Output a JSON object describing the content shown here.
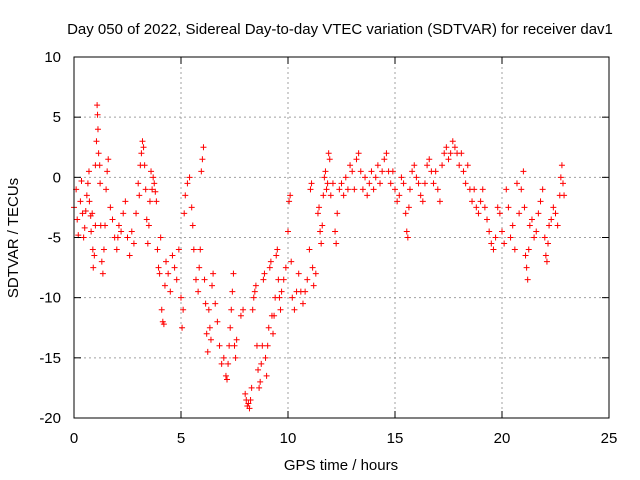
{
  "chart_data": {
    "type": "scatter",
    "title": "Day 050 of 2022, Sidereal Day-to-day VTEC variation (SDTVAR) for receiver dav1",
    "xlabel": "GPS time / hours",
    "ylabel": "SDTVAR / TECUs",
    "xlim": [
      0,
      25
    ],
    "ylim": [
      -20,
      10
    ],
    "xticks": [
      0,
      5,
      10,
      15,
      20,
      25
    ],
    "yticks": [
      -20,
      -15,
      -10,
      -5,
      0,
      5,
      10
    ],
    "grid": true,
    "marker": "+",
    "color": "#ff0000",
    "series": [
      {
        "name": "SDTVAR",
        "points": [
          [
            0.0,
            -2.5
          ],
          [
            0.1,
            -1.0
          ],
          [
            0.15,
            -3.5
          ],
          [
            0.2,
            -4.8
          ],
          [
            0.3,
            -2.0
          ],
          [
            0.35,
            -0.3
          ],
          [
            0.4,
            -3.0
          ],
          [
            0.45,
            -5.0
          ],
          [
            0.5,
            -4.2
          ],
          [
            0.55,
            -2.8
          ],
          [
            0.6,
            -1.5
          ],
          [
            0.65,
            -0.5
          ],
          [
            0.7,
            0.5
          ],
          [
            0.72,
            -2.0
          ],
          [
            0.78,
            -3.2
          ],
          [
            0.8,
            -4.5
          ],
          [
            0.85,
            -3.0
          ],
          [
            0.88,
            -6.0
          ],
          [
            0.9,
            -7.5
          ],
          [
            0.95,
            -6.5
          ],
          [
            1.0,
            -4.0
          ],
          [
            1.0,
            1.0
          ],
          [
            1.05,
            3.0
          ],
          [
            1.08,
            6.0
          ],
          [
            1.1,
            5.2
          ],
          [
            1.12,
            4.0
          ],
          [
            1.15,
            2.0
          ],
          [
            1.2,
            1.0
          ],
          [
            1.22,
            -0.5
          ],
          [
            1.25,
            -4.0
          ],
          [
            1.3,
            -7.0
          ],
          [
            1.35,
            -8.0
          ],
          [
            1.4,
            -6.0
          ],
          [
            1.45,
            -4.0
          ],
          [
            1.5,
            -1.0
          ],
          [
            1.55,
            0.5
          ],
          [
            1.6,
            1.5
          ],
          [
            1.7,
            -2.5
          ],
          [
            1.8,
            -3.5
          ],
          [
            1.9,
            -5.0
          ],
          [
            2.0,
            -6.0
          ],
          [
            2.05,
            -5.0
          ],
          [
            2.1,
            -4.0
          ],
          [
            2.2,
            -4.5
          ],
          [
            2.3,
            -3.0
          ],
          [
            2.4,
            -2.0
          ],
          [
            2.5,
            -5.0
          ],
          [
            2.6,
            -6.5
          ],
          [
            2.7,
            -4.5
          ],
          [
            2.8,
            -5.5
          ],
          [
            2.9,
            -3.0
          ],
          [
            3.0,
            -0.5
          ],
          [
            3.05,
            -1.5
          ],
          [
            3.1,
            1.0
          ],
          [
            3.15,
            2.0
          ],
          [
            3.2,
            3.0
          ],
          [
            3.25,
            2.5
          ],
          [
            3.3,
            1.0
          ],
          [
            3.35,
            -1.0
          ],
          [
            3.4,
            -3.5
          ],
          [
            3.45,
            -5.5
          ],
          [
            3.5,
            -4.0
          ],
          [
            3.55,
            -2.0
          ],
          [
            3.6,
            0.5
          ],
          [
            3.65,
            -1.0
          ],
          [
            3.7,
            0.0
          ],
          [
            3.75,
            -0.5
          ],
          [
            3.8,
            -1.2
          ],
          [
            3.85,
            -2.0
          ],
          [
            3.9,
            -6.0
          ],
          [
            3.95,
            -7.5
          ],
          [
            4.0,
            -8.0
          ],
          [
            4.05,
            -5.0
          ],
          [
            4.1,
            -11.0
          ],
          [
            4.15,
            -12.0
          ],
          [
            4.2,
            -12.2
          ],
          [
            4.25,
            -9.0
          ],
          [
            4.3,
            -7.0
          ],
          [
            4.4,
            -8.0
          ],
          [
            4.5,
            -9.5
          ],
          [
            4.6,
            -6.5
          ],
          [
            4.7,
            -7.5
          ],
          [
            4.8,
            -8.5
          ],
          [
            4.9,
            -6.0
          ],
          [
            5.0,
            -10.0
          ],
          [
            5.05,
            -12.5
          ],
          [
            5.1,
            -11.0
          ],
          [
            5.15,
            -3.0
          ],
          [
            5.2,
            -1.5
          ],
          [
            5.3,
            -0.5
          ],
          [
            5.4,
            0.0
          ],
          [
            5.5,
            -2.5
          ],
          [
            5.55,
            -4.0
          ],
          [
            5.6,
            -6.0
          ],
          [
            5.7,
            -8.5
          ],
          [
            5.8,
            -9.5
          ],
          [
            5.85,
            -7.5
          ],
          [
            5.9,
            -6.0
          ],
          [
            5.95,
            0.5
          ],
          [
            6.0,
            1.5
          ],
          [
            6.05,
            2.5
          ],
          [
            6.1,
            -8.5
          ],
          [
            6.15,
            -10.5
          ],
          [
            6.2,
            -13.0
          ],
          [
            6.25,
            -14.5
          ],
          [
            6.3,
            -11.0
          ],
          [
            6.35,
            -12.5
          ],
          [
            6.4,
            -13.5
          ],
          [
            6.45,
            -9.0
          ],
          [
            6.5,
            -8.0
          ],
          [
            6.6,
            -10.5
          ],
          [
            6.7,
            -12.0
          ],
          [
            6.8,
            -14.0
          ],
          [
            6.9,
            -15.5
          ],
          [
            7.0,
            -15.0
          ],
          [
            7.1,
            -16.5
          ],
          [
            7.15,
            -16.8
          ],
          [
            7.2,
            -15.5
          ],
          [
            7.25,
            -14.0
          ],
          [
            7.3,
            -12.5
          ],
          [
            7.35,
            -11.0
          ],
          [
            7.4,
            -9.5
          ],
          [
            7.45,
            -8.0
          ],
          [
            7.5,
            -14.0
          ],
          [
            7.55,
            -15.0
          ],
          [
            7.6,
            -13.5
          ],
          [
            7.8,
            -11.5
          ],
          [
            7.9,
            -11.0
          ],
          [
            8.0,
            -18.0
          ],
          [
            8.05,
            -18.5
          ],
          [
            8.1,
            -19.0
          ],
          [
            8.15,
            -18.8
          ],
          [
            8.2,
            -19.2
          ],
          [
            8.25,
            -18.5
          ],
          [
            8.3,
            -17.5
          ],
          [
            8.35,
            -11.0
          ],
          [
            8.4,
            -10.0
          ],
          [
            8.45,
            -9.5
          ],
          [
            8.5,
            -9.0
          ],
          [
            8.55,
            -14.0
          ],
          [
            8.6,
            -16.0
          ],
          [
            8.65,
            -17.5
          ],
          [
            8.7,
            -17.0
          ],
          [
            8.75,
            -15.5
          ],
          [
            8.8,
            -14.0
          ],
          [
            8.85,
            -8.5
          ],
          [
            8.9,
            -8.0
          ],
          [
            8.95,
            -15.0
          ],
          [
            9.0,
            -16.5
          ],
          [
            9.05,
            -14.0
          ],
          [
            9.1,
            -12.5
          ],
          [
            9.15,
            -7.5
          ],
          [
            9.2,
            -7.0
          ],
          [
            9.25,
            -11.5
          ],
          [
            9.3,
            -13.0
          ],
          [
            9.35,
            -11.5
          ],
          [
            9.4,
            -10.0
          ],
          [
            9.45,
            -6.5
          ],
          [
            9.5,
            -6.0
          ],
          [
            9.55,
            -8.5
          ],
          [
            9.6,
            -10.0
          ],
          [
            9.65,
            -11.0
          ],
          [
            9.7,
            -9.5
          ],
          [
            9.8,
            -8.5
          ],
          [
            9.9,
            -7.5
          ],
          [
            10.0,
            -4.5
          ],
          [
            10.05,
            -2.0
          ],
          [
            10.1,
            -1.5
          ],
          [
            10.15,
            -7.0
          ],
          [
            10.2,
            -10.0
          ],
          [
            10.3,
            -11.0
          ],
          [
            10.4,
            -9.5
          ],
          [
            10.5,
            -8.0
          ],
          [
            10.6,
            -9.5
          ],
          [
            10.7,
            -10.5
          ],
          [
            10.8,
            -9.5
          ],
          [
            10.9,
            -8.5
          ],
          [
            11.0,
            -6.0
          ],
          [
            11.05,
            -1.0
          ],
          [
            11.1,
            -0.5
          ],
          [
            11.15,
            -7.5
          ],
          [
            11.2,
            -9.0
          ],
          [
            11.3,
            -8.0
          ],
          [
            11.4,
            -3.0
          ],
          [
            11.45,
            -2.5
          ],
          [
            11.5,
            -4.5
          ],
          [
            11.55,
            -5.5
          ],
          [
            11.6,
            -4.0
          ],
          [
            11.65,
            -1.5
          ],
          [
            11.7,
            0.0
          ],
          [
            11.75,
            0.5
          ],
          [
            11.8,
            -1.0
          ],
          [
            11.85,
            -0.5
          ],
          [
            11.9,
            2.0
          ],
          [
            11.95,
            1.5
          ],
          [
            12.0,
            -1.5
          ],
          [
            12.1,
            -0.5
          ],
          [
            12.2,
            -4.5
          ],
          [
            12.25,
            -5.5
          ],
          [
            12.3,
            -3.0
          ],
          [
            12.4,
            -1.0
          ],
          [
            12.5,
            -0.5
          ],
          [
            12.6,
            -1.5
          ],
          [
            12.7,
            0.0
          ],
          [
            12.8,
            -1.0
          ],
          [
            12.9,
            1.0
          ],
          [
            13.0,
            0.5
          ],
          [
            13.1,
            -1.0
          ],
          [
            13.2,
            1.5
          ],
          [
            13.3,
            2.0
          ],
          [
            13.4,
            0.5
          ],
          [
            13.5,
            -1.0
          ],
          [
            13.6,
            0.0
          ],
          [
            13.7,
            -1.5
          ],
          [
            13.8,
            -0.5
          ],
          [
            13.9,
            0.5
          ],
          [
            14.0,
            -1.0
          ],
          [
            14.1,
            0.0
          ],
          [
            14.2,
            1.0
          ],
          [
            14.3,
            -0.5
          ],
          [
            14.4,
            0.5
          ],
          [
            14.5,
            1.5
          ],
          [
            14.6,
            2.0
          ],
          [
            14.7,
            0.5
          ],
          [
            14.8,
            -0.5
          ],
          [
            14.9,
            0.5
          ],
          [
            15.0,
            -1.0
          ],
          [
            15.1,
            -2.0
          ],
          [
            15.2,
            -1.5
          ],
          [
            15.3,
            0.0
          ],
          [
            15.4,
            -0.5
          ],
          [
            15.5,
            -3.0
          ],
          [
            15.55,
            -4.5
          ],
          [
            15.6,
            -5.0
          ],
          [
            15.65,
            -2.5
          ],
          [
            15.7,
            -1.0
          ],
          [
            15.8,
            0.5
          ],
          [
            15.9,
            1.0
          ],
          [
            16.0,
            0.0
          ],
          [
            16.1,
            -0.5
          ],
          [
            16.2,
            -1.5
          ],
          [
            16.3,
            -2.0
          ],
          [
            16.4,
            -0.5
          ],
          [
            16.5,
            1.0
          ],
          [
            16.6,
            1.5
          ],
          [
            16.7,
            0.5
          ],
          [
            16.8,
            -0.5
          ],
          [
            16.9,
            0.5
          ],
          [
            17.0,
            -1.0
          ],
          [
            17.1,
            -2.0
          ],
          [
            17.2,
            1.0
          ],
          [
            17.3,
            2.0
          ],
          [
            17.4,
            2.5
          ],
          [
            17.5,
            1.5
          ],
          [
            17.6,
            2.0
          ],
          [
            17.7,
            3.0
          ],
          [
            17.8,
            2.5
          ],
          [
            17.9,
            2.0
          ],
          [
            18.0,
            1.0
          ],
          [
            18.1,
            2.0
          ],
          [
            18.2,
            0.5
          ],
          [
            18.3,
            -0.5
          ],
          [
            18.4,
            1.0
          ],
          [
            18.5,
            -1.0
          ],
          [
            18.6,
            -2.0
          ],
          [
            18.7,
            -1.0
          ],
          [
            18.8,
            -2.5
          ],
          [
            18.9,
            -3.0
          ],
          [
            19.0,
            -2.0
          ],
          [
            19.1,
            -1.0
          ],
          [
            19.2,
            -2.5
          ],
          [
            19.3,
            -3.5
          ],
          [
            19.4,
            -4.5
          ],
          [
            19.5,
            -5.5
          ],
          [
            19.6,
            -6.0
          ],
          [
            19.7,
            -5.0
          ],
          [
            19.8,
            -2.5
          ],
          [
            19.9,
            -3.0
          ],
          [
            20.0,
            -4.5
          ],
          [
            20.1,
            -5.5
          ],
          [
            20.2,
            -1.0
          ],
          [
            20.3,
            -2.5
          ],
          [
            20.4,
            -5.0
          ],
          [
            20.5,
            -4.0
          ],
          [
            20.6,
            -6.0
          ],
          [
            20.7,
            -0.5
          ],
          [
            20.8,
            -3.0
          ],
          [
            20.9,
            -1.0
          ],
          [
            21.0,
            0.5
          ],
          [
            21.05,
            -2.5
          ],
          [
            21.1,
            -6.5
          ],
          [
            21.15,
            -7.5
          ],
          [
            21.2,
            -8.5
          ],
          [
            21.25,
            -6.0
          ],
          [
            21.3,
            -4.0
          ],
          [
            21.4,
            -3.5
          ],
          [
            21.5,
            -5.0
          ],
          [
            21.6,
            -4.5
          ],
          [
            21.7,
            -3.0
          ],
          [
            21.8,
            -2.0
          ],
          [
            21.9,
            -1.0
          ],
          [
            22.0,
            -5.0
          ],
          [
            22.05,
            -6.5
          ],
          [
            22.1,
            -7.0
          ],
          [
            22.15,
            -5.5
          ],
          [
            22.2,
            -4.0
          ],
          [
            22.3,
            -3.5
          ],
          [
            22.4,
            -2.5
          ],
          [
            22.5,
            -3.0
          ],
          [
            22.6,
            -4.0
          ],
          [
            22.7,
            -1.5
          ],
          [
            22.75,
            0.0
          ],
          [
            22.8,
            1.0
          ],
          [
            22.85,
            -0.5
          ],
          [
            22.9,
            -1.5
          ]
        ]
      }
    ]
  }
}
